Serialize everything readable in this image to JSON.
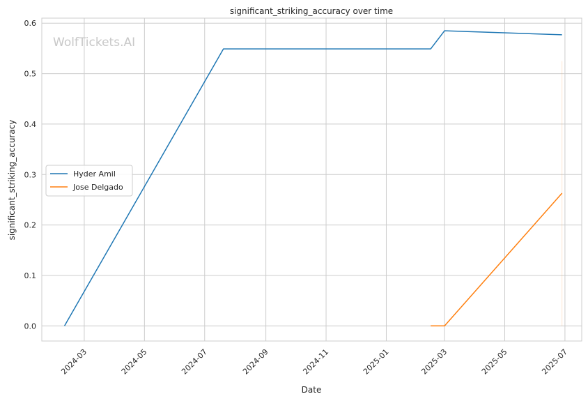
{
  "chart_data": {
    "type": "line",
    "title": "significant_striking_accuracy over time",
    "xlabel": "Date",
    "ylabel": "significant_striking_accuracy",
    "watermark": "WolfTickets.AI",
    "x_ticks": [
      "2024-03",
      "2024-05",
      "2024-07",
      "2024-09",
      "2024-11",
      "2025-01",
      "2025-03",
      "2025-05",
      "2025-07"
    ],
    "y_ticks": [
      "0.0",
      "0.1",
      "0.2",
      "0.3",
      "0.4",
      "0.5",
      "0.6"
    ],
    "xlim": [
      "2024-01-18",
      "2025-07-18"
    ],
    "ylim": [
      -0.03,
      0.61
    ],
    "grid": true,
    "legend_position": "center-left",
    "series": [
      {
        "name": "Hyder Amil",
        "color": "#1f77b4",
        "points": [
          {
            "x": "2024-02-10",
            "y": 0.0
          },
          {
            "x": "2024-07-20",
            "y": 0.549
          },
          {
            "x": "2025-02-15",
            "y": 0.549
          },
          {
            "x": "2025-03-01",
            "y": 0.585
          },
          {
            "x": "2025-06-28",
            "y": 0.577
          }
        ]
      },
      {
        "name": "Jose Delgado",
        "color": "#ff7f0e",
        "points": [
          {
            "x": "2025-02-15",
            "y": 0.0
          },
          {
            "x": "2025-03-01",
            "y": 0.0
          },
          {
            "x": "2025-06-28",
            "y": 0.263
          }
        ]
      }
    ]
  }
}
